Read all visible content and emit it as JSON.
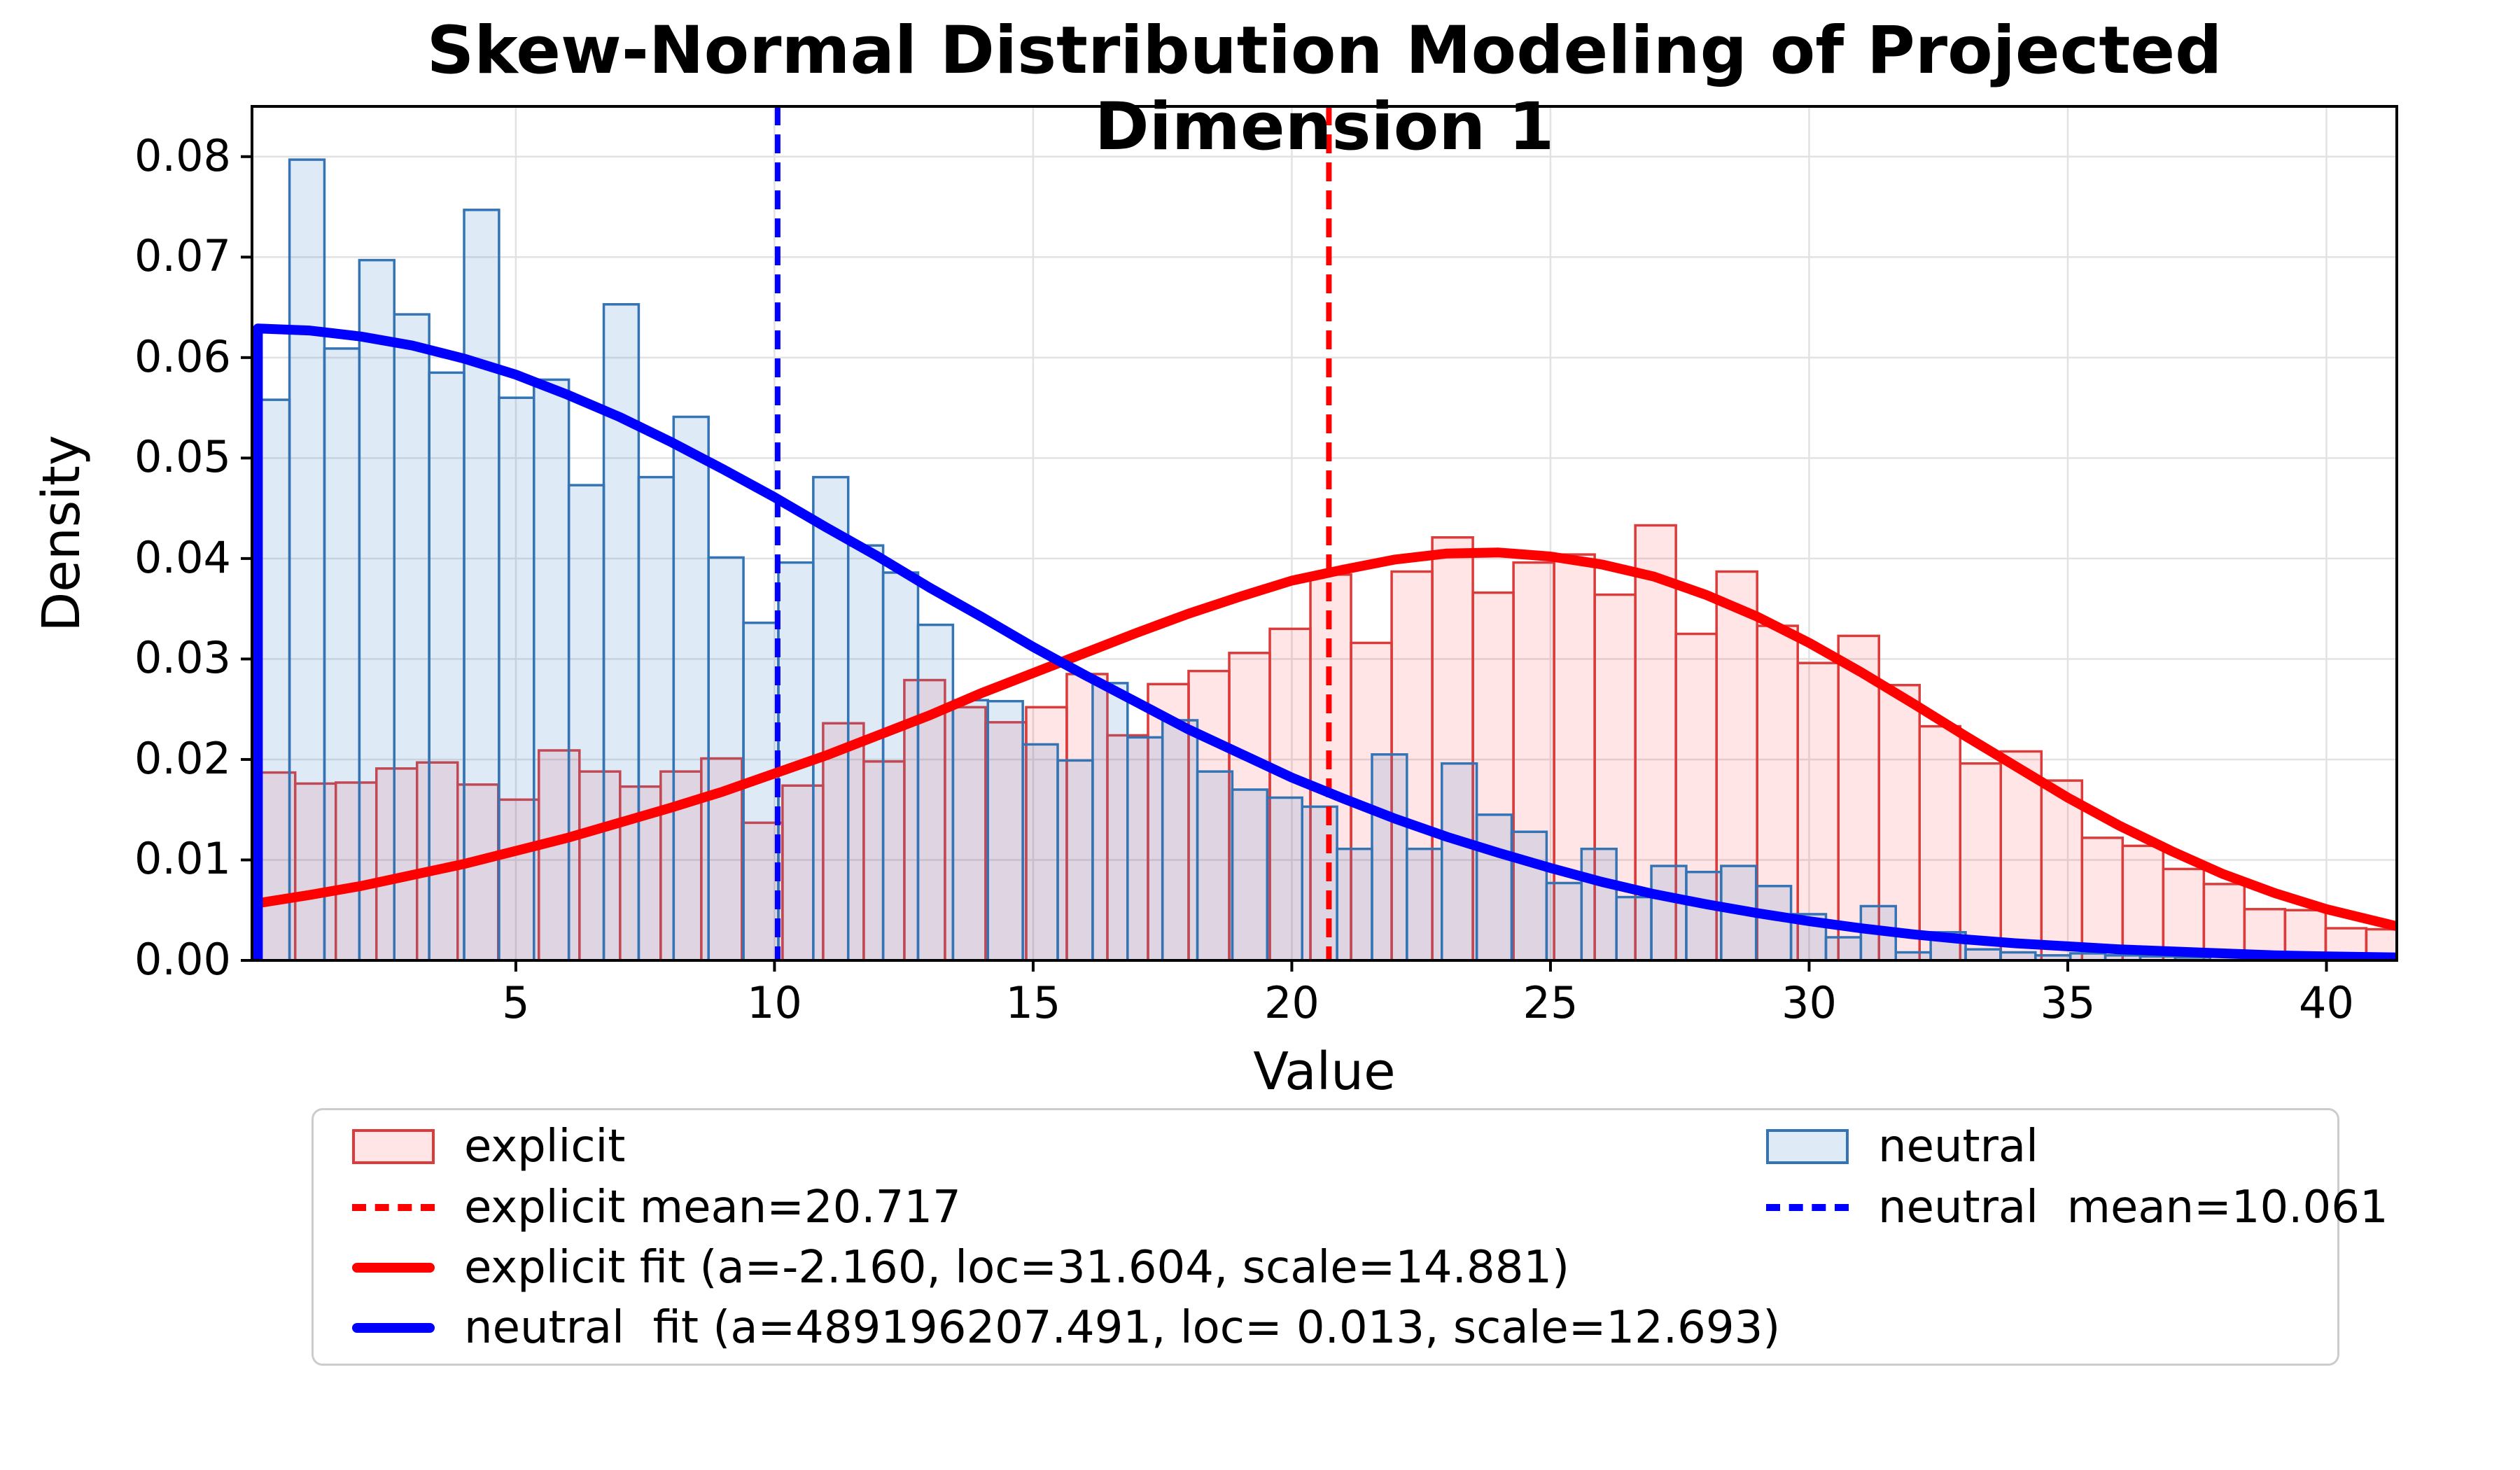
{
  "chart_data": {
    "type": "bar",
    "subtype": "overlaid-histograms-with-fit-curves",
    "title": "Skew-Normal Distribution Modeling of Projected Dimension 1",
    "xlabel": "Value",
    "ylabel": "Density",
    "xlim": [
      -0.1,
      41.36
    ],
    "ylim": [
      0,
      0.085
    ],
    "grid": true,
    "xticks": [
      5,
      10,
      15,
      20,
      25,
      30,
      35,
      40
    ],
    "xtick_labels": [
      "5",
      "10",
      "15",
      "20",
      "25",
      "30",
      "35",
      "40"
    ],
    "yticks": [
      0,
      0.01,
      0.02,
      0.03,
      0.04,
      0.05,
      0.06,
      0.07,
      0.08
    ],
    "ytick_labels": [
      "0.00",
      "0.01",
      "0.02",
      "0.03",
      "0.04",
      "0.05",
      "0.06",
      "0.07",
      "0.08"
    ],
    "colors": {
      "explicit_fill": "rgba(255,40,40,0.12)",
      "explicit_edge": "#da3b3b",
      "explicit_line": "#ff0000",
      "neutral_fill": "rgba(80,140,210,0.18)",
      "neutral_edge": "#3474b4",
      "neutral_line": "#0000ff",
      "gridline": "#e2e2e2",
      "spine": "#000000"
    },
    "series": [
      {
        "name": "explicit",
        "kind": "hist",
        "bin_start": -0.05,
        "bin_width": 0.785,
        "densities": [
          0.0187,
          0.0176,
          0.0177,
          0.0191,
          0.0197,
          0.0175,
          0.016,
          0.0209,
          0.0188,
          0.0173,
          0.0188,
          0.0201,
          0.0137,
          0.0174,
          0.0236,
          0.0198,
          0.0279,
          0.0252,
          0.0237,
          0.0252,
          0.0285,
          0.0224,
          0.0275,
          0.0288,
          0.0306,
          0.033,
          0.0384,
          0.0316,
          0.0387,
          0.0421,
          0.0366,
          0.0396,
          0.0404,
          0.0364,
          0.0433,
          0.0325,
          0.0387,
          0.0333,
          0.0296,
          0.0323,
          0.0274,
          0.0233,
          0.0196,
          0.0208,
          0.0179,
          0.0122,
          0.0114,
          0.0091,
          0.0076,
          0.0051,
          0.005,
          0.0032,
          0.0031
        ]
      },
      {
        "name": "neutral",
        "kind": "hist",
        "bin_start": -0.05,
        "bin_width": 0.675,
        "densities": [
          0.0558,
          0.0797,
          0.0609,
          0.0697,
          0.0643,
          0.0585,
          0.0747,
          0.056,
          0.0578,
          0.0473,
          0.0653,
          0.0481,
          0.0541,
          0.0401,
          0.0336,
          0.0396,
          0.0481,
          0.0413,
          0.0386,
          0.0334,
          0.0259,
          0.0258,
          0.0215,
          0.0199,
          0.0276,
          0.0222,
          0.0239,
          0.0188,
          0.017,
          0.0162,
          0.0153,
          0.0111,
          0.0205,
          0.0111,
          0.0196,
          0.0145,
          0.0128,
          0.0077,
          0.0111,
          0.0063,
          0.0094,
          0.0088,
          0.0094,
          0.0074,
          0.0046,
          0.0023,
          0.0054,
          0.0008,
          0.0028,
          0.0011,
          0.0008,
          0.0005,
          0.0007,
          0.0005,
          0.0004,
          0.0003,
          0.0004,
          0.0002,
          0.0003,
          0.0002,
          0.0001
        ]
      },
      {
        "name": "explicit fit",
        "kind": "curve",
        "params": {
          "a": -2.16,
          "loc": 31.604,
          "scale": 14.881
        },
        "points": [
          [
            -0.1,
            0.0056
          ],
          [
            1,
            0.0065
          ],
          [
            2,
            0.0074
          ],
          [
            3,
            0.0085
          ],
          [
            4,
            0.0096
          ],
          [
            5,
            0.0109
          ],
          [
            6,
            0.0122
          ],
          [
            7,
            0.0137
          ],
          [
            8,
            0.0152
          ],
          [
            9,
            0.0168
          ],
          [
            10,
            0.0186
          ],
          [
            11,
            0.0204
          ],
          [
            12,
            0.0224
          ],
          [
            13,
            0.0244
          ],
          [
            14,
            0.0266
          ],
          [
            15,
            0.0286
          ],
          [
            16,
            0.0306
          ],
          [
            17,
            0.0326
          ],
          [
            18,
            0.0345
          ],
          [
            19,
            0.0362
          ],
          [
            20,
            0.0378
          ],
          [
            21,
            0.0389
          ],
          [
            22,
            0.0399
          ],
          [
            23,
            0.0405
          ],
          [
            24,
            0.0406
          ],
          [
            25,
            0.0402
          ],
          [
            26,
            0.0394
          ],
          [
            27,
            0.0382
          ],
          [
            28,
            0.0364
          ],
          [
            29,
            0.0342
          ],
          [
            30,
            0.0316
          ],
          [
            31,
            0.0287
          ],
          [
            32,
            0.0256
          ],
          [
            33,
            0.0224
          ],
          [
            34,
            0.0193
          ],
          [
            35,
            0.0162
          ],
          [
            36,
            0.0134
          ],
          [
            37,
            0.0109
          ],
          [
            38,
            0.0086
          ],
          [
            39,
            0.0067
          ],
          [
            40,
            0.0051
          ],
          [
            41.36,
            0.0034
          ]
        ]
      },
      {
        "name": "neutral fit",
        "kind": "curve",
        "params": {
          "a": 489196207.491,
          "loc": 0.013,
          "scale": 12.693
        },
        "points": [
          [
            0.013,
            0.0
          ],
          [
            0.013,
            0.0629
          ],
          [
            1,
            0.0627
          ],
          [
            2,
            0.0621
          ],
          [
            3,
            0.0612
          ],
          [
            4,
            0.0599
          ],
          [
            5,
            0.0583
          ],
          [
            6,
            0.0563
          ],
          [
            7,
            0.0541
          ],
          [
            8,
            0.0516
          ],
          [
            9,
            0.0489
          ],
          [
            10,
            0.0461
          ],
          [
            11,
            0.0431
          ],
          [
            12,
            0.0402
          ],
          [
            13,
            0.0371
          ],
          [
            14,
            0.0342
          ],
          [
            15,
            0.0312
          ],
          [
            16,
            0.0284
          ],
          [
            17,
            0.0257
          ],
          [
            18,
            0.023
          ],
          [
            19,
            0.0206
          ],
          [
            20,
            0.0182
          ],
          [
            21,
            0.0161
          ],
          [
            22,
            0.0141
          ],
          [
            23,
            0.0123
          ],
          [
            24,
            0.0107
          ],
          [
            25,
            0.0092
          ],
          [
            26,
            0.0078
          ],
          [
            27,
            0.0066
          ],
          [
            28,
            0.0056
          ],
          [
            29,
            0.0047
          ],
          [
            30,
            0.0039
          ],
          [
            31,
            0.0032
          ],
          [
            32,
            0.0026
          ],
          [
            33,
            0.0021
          ],
          [
            34,
            0.0017
          ],
          [
            35,
            0.0014
          ],
          [
            36,
            0.0011
          ],
          [
            37,
            0.0009
          ],
          [
            38,
            0.0007
          ],
          [
            39,
            0.0005
          ],
          [
            40,
            0.0004
          ],
          [
            41.36,
            0.0003
          ]
        ]
      },
      {
        "name": "explicit mean",
        "kind": "vline",
        "x": 20.717
      },
      {
        "name": "neutral mean",
        "kind": "vline",
        "x": 10.061
      }
    ],
    "legend_position": "below-left"
  },
  "legend": {
    "columns": [
      [
        {
          "marker": "patch",
          "series": "explicit",
          "label": "explicit"
        },
        {
          "marker": "dash",
          "series": "explicit",
          "label": "explicit mean=20.717"
        },
        {
          "marker": "line",
          "series": "explicit",
          "label": "explicit fit (a=-2.160, loc=31.604, scale=14.881)"
        },
        {
          "marker": "line",
          "series": "neutral",
          "label": "neutral  fit (a=489196207.491, loc= 0.013, scale=12.693)"
        }
      ],
      [
        {
          "marker": "patch",
          "series": "neutral",
          "label": "neutral"
        },
        {
          "marker": "dash",
          "series": "neutral",
          "label": "neutral  mean=10.061"
        }
      ]
    ]
  }
}
